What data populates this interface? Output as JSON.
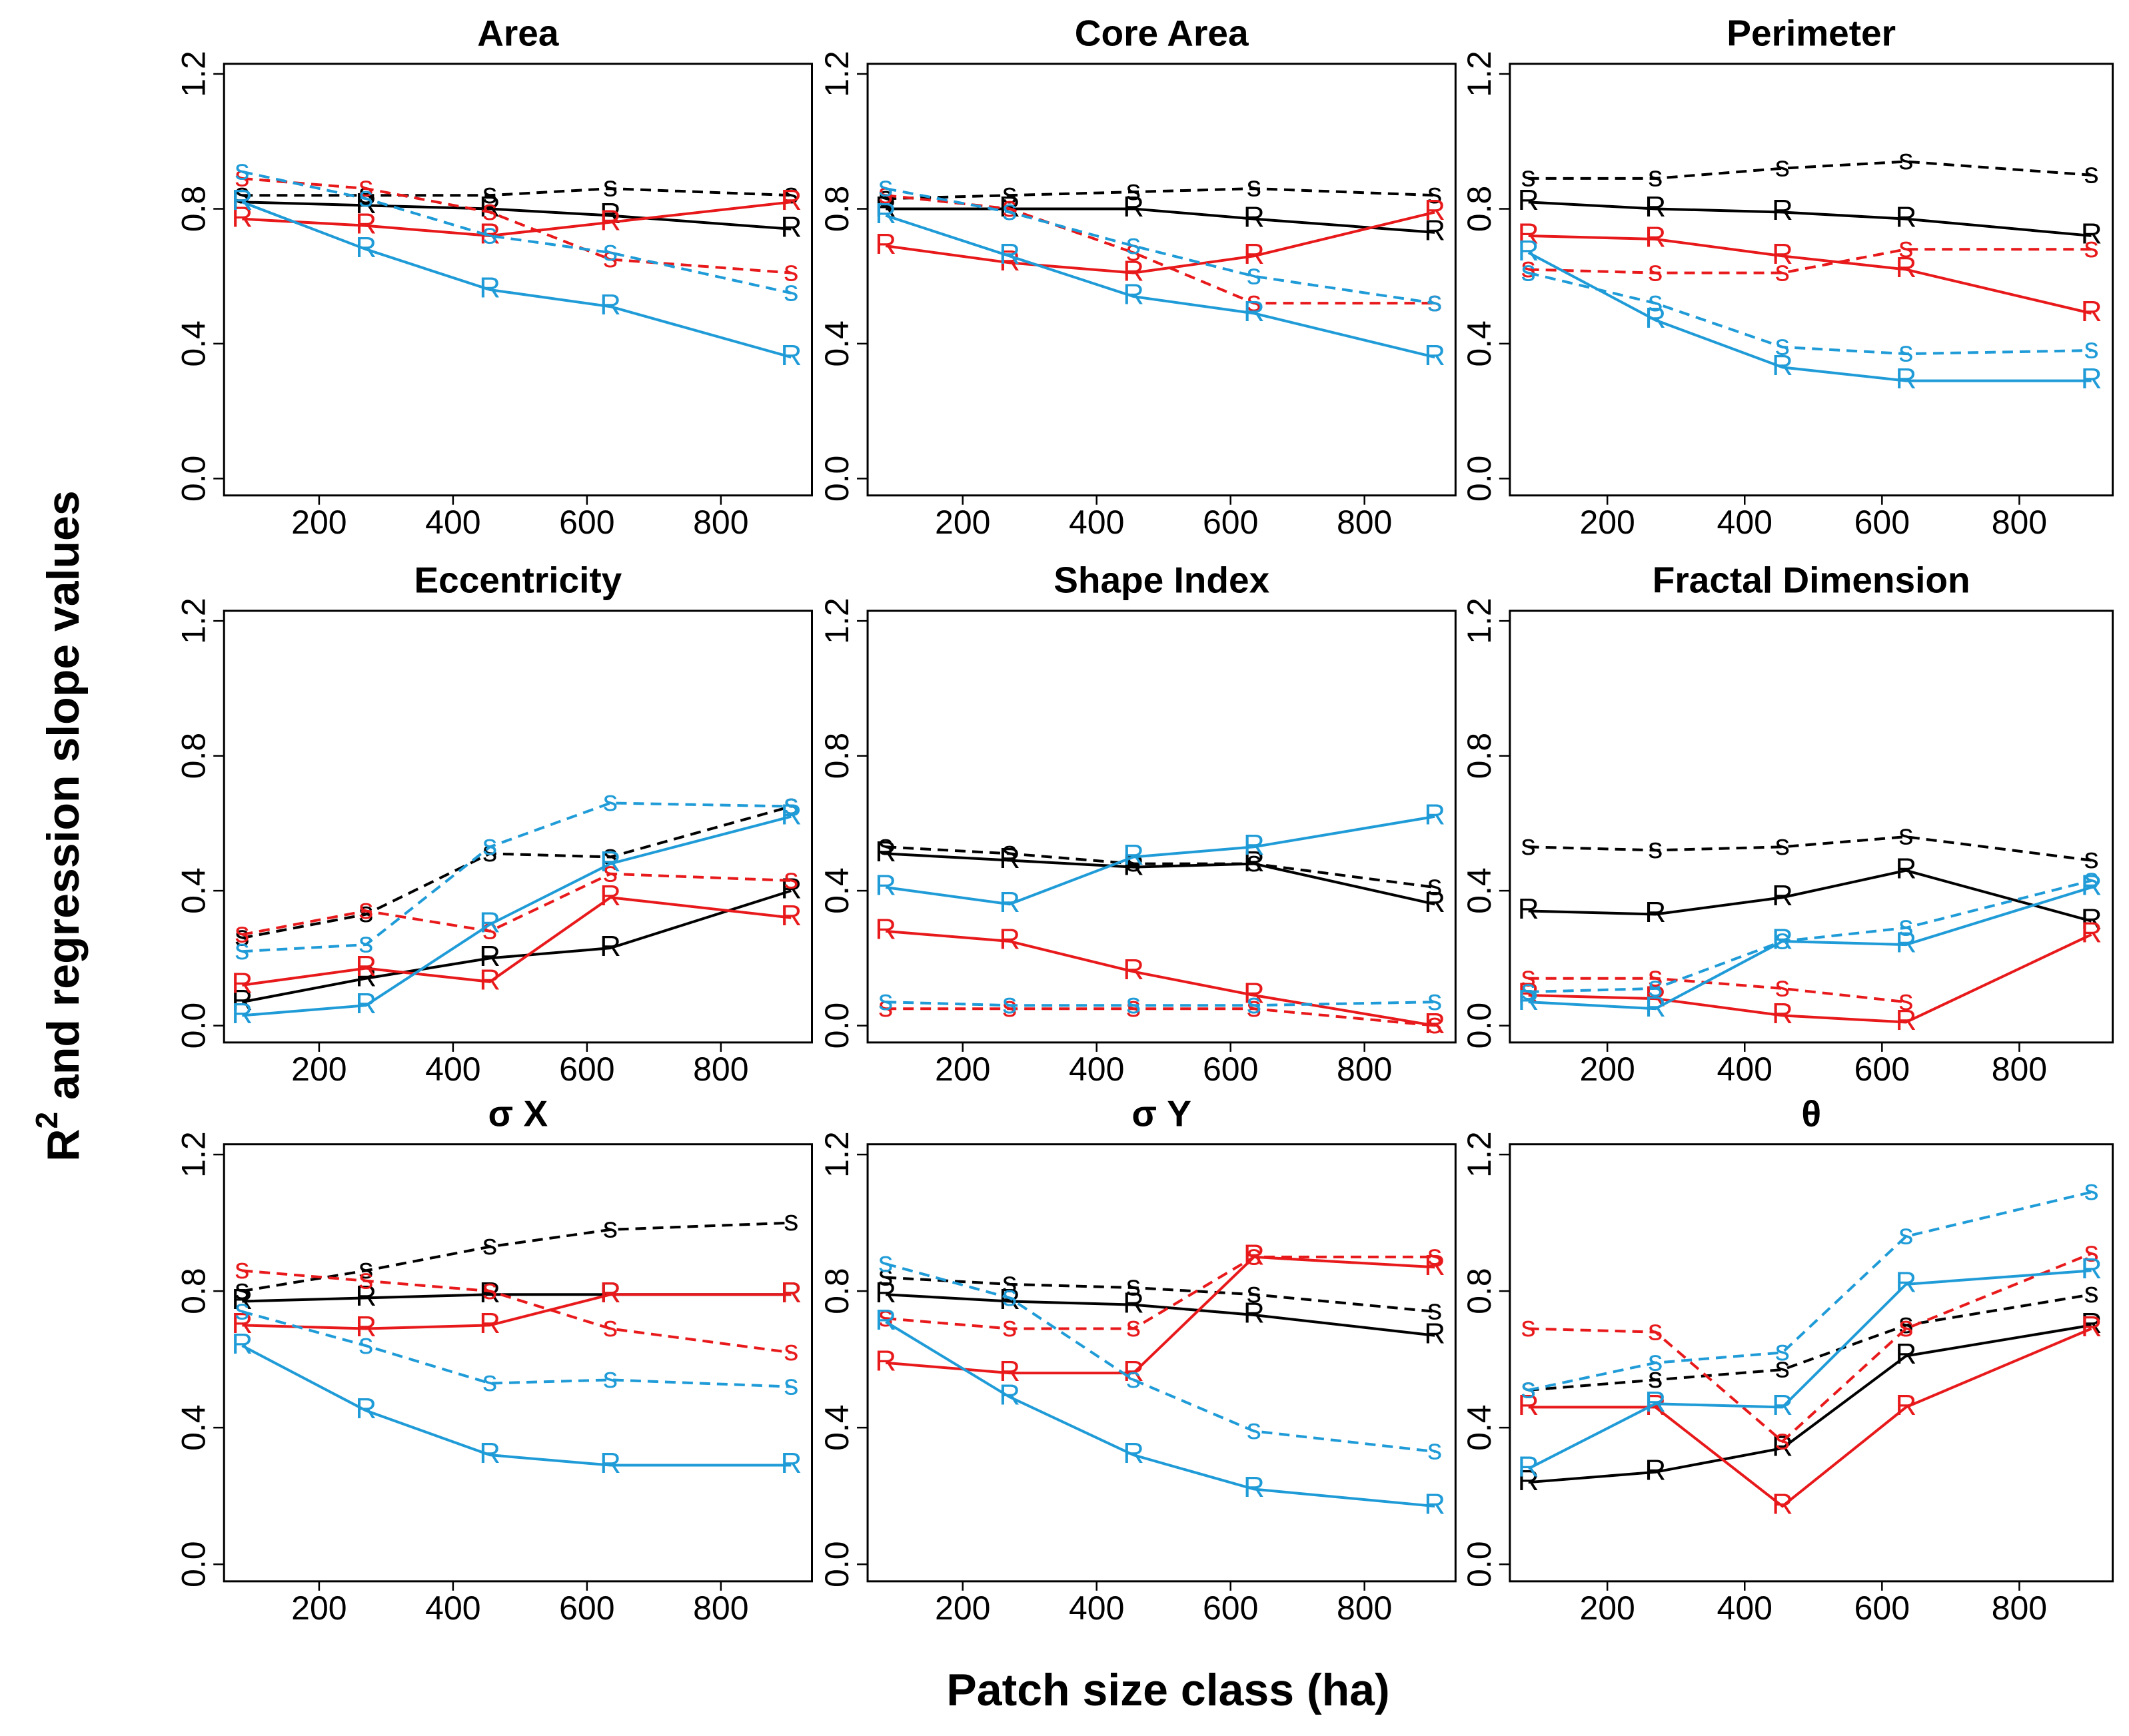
{
  "axis_labels": {
    "x_label": "Patch size class (ha)",
    "y_label": {
      "base": "R",
      "superscript": "2",
      "rest": "and regression slope values"
    }
  },
  "chart_data": [
    {
      "type": "line",
      "title": "Area",
      "x": [
        85,
        270,
        455,
        635,
        905
      ],
      "xlim": [
        58,
        936
      ],
      "xticks": [
        200,
        400,
        600,
        800
      ],
      "ylim": [
        -0.05,
        1.23
      ],
      "yticks": [
        {
          "value": 0,
          "label": "0.0"
        },
        0.4,
        0.8,
        1.2
      ],
      "series": [
        {
          "marker": "s",
          "color": "#000000",
          "linestyle": "dashed",
          "values": [
            0.84,
            0.84,
            0.84,
            0.86,
            0.84
          ]
        },
        {
          "marker": "R",
          "color": "#000000",
          "linestyle": "solid",
          "values": [
            0.82,
            0.81,
            0.8,
            0.78,
            0.74
          ]
        },
        {
          "marker": "s",
          "color": "#e8191b",
          "linestyle": "dashed",
          "values": [
            0.89,
            0.86,
            0.79,
            0.65,
            0.61
          ]
        },
        {
          "marker": "R",
          "color": "#e8191b",
          "linestyle": "solid",
          "values": [
            0.77,
            0.75,
            0.72,
            0.76,
            0.82
          ]
        },
        {
          "marker": "s",
          "color": "#1f9bd7",
          "linestyle": "dashed",
          "values": [
            0.91,
            0.83,
            0.72,
            0.67,
            0.55
          ]
        },
        {
          "marker": "R",
          "color": "#1f9bd7",
          "linestyle": "solid",
          "values": [
            0.82,
            0.68,
            0.56,
            0.51,
            0.36
          ]
        }
      ]
    },
    {
      "type": "line",
      "title": "Core Area",
      "x": [
        85,
        270,
        455,
        635,
        905
      ],
      "xlim": [
        58,
        936
      ],
      "xticks": [
        200,
        400,
        600,
        800
      ],
      "ylim": [
        -0.05,
        1.23
      ],
      "yticks": [
        {
          "value": 0,
          "label": "0.0"
        },
        0.4,
        0.8,
        1.2
      ],
      "series": [
        {
          "marker": "s",
          "color": "#000000",
          "linestyle": "dashed",
          "values": [
            0.83,
            0.84,
            0.85,
            0.86,
            0.84
          ]
        },
        {
          "marker": "R",
          "color": "#000000",
          "linestyle": "solid",
          "values": [
            0.8,
            0.8,
            0.8,
            0.77,
            0.73
          ]
        },
        {
          "marker": "s",
          "color": "#e8191b",
          "linestyle": "dashed",
          "values": [
            0.84,
            0.8,
            0.67,
            0.52,
            0.52
          ]
        },
        {
          "marker": "R",
          "color": "#e8191b",
          "linestyle": "solid",
          "values": [
            0.69,
            0.64,
            0.61,
            0.66,
            0.79
          ]
        },
        {
          "marker": "s",
          "color": "#1f9bd7",
          "linestyle": "dashed",
          "values": [
            0.86,
            0.79,
            0.69,
            0.6,
            0.52
          ]
        },
        {
          "marker": "R",
          "color": "#1f9bd7",
          "linestyle": "solid",
          "values": [
            0.78,
            0.66,
            0.54,
            0.49,
            0.36
          ]
        }
      ]
    },
    {
      "type": "line",
      "title": "Perimeter",
      "x": [
        85,
        270,
        455,
        635,
        905
      ],
      "xlim": [
        58,
        936
      ],
      "xticks": [
        200,
        400,
        600,
        800
      ],
      "ylim": [
        -0.05,
        1.23
      ],
      "yticks": [
        {
          "value": 0,
          "label": "0.0"
        },
        0.4,
        0.8,
        1.2
      ],
      "series": [
        {
          "marker": "s",
          "color": "#000000",
          "linestyle": "dashed",
          "values": [
            0.89,
            0.89,
            0.92,
            0.94,
            0.9
          ]
        },
        {
          "marker": "R",
          "color": "#000000",
          "linestyle": "solid",
          "values": [
            0.82,
            0.8,
            0.79,
            0.77,
            0.72
          ]
        },
        {
          "marker": "s",
          "color": "#e8191b",
          "linestyle": "dashed",
          "values": [
            0.62,
            0.61,
            0.61,
            0.68,
            0.68
          ]
        },
        {
          "marker": "R",
          "color": "#e8191b",
          "linestyle": "solid",
          "values": [
            0.72,
            0.71,
            0.66,
            0.62,
            0.49
          ]
        },
        {
          "marker": "s",
          "color": "#1f9bd7",
          "linestyle": "dashed",
          "values": [
            0.61,
            0.52,
            0.39,
            0.37,
            0.38
          ]
        },
        {
          "marker": "R",
          "color": "#1f9bd7",
          "linestyle": "solid",
          "values": [
            0.67,
            0.47,
            0.33,
            0.29,
            0.29
          ]
        }
      ]
    },
    {
      "type": "line",
      "title": "Eccentricity",
      "x": [
        85,
        270,
        455,
        635,
        905
      ],
      "xlim": [
        58,
        936
      ],
      "xticks": [
        200,
        400,
        600,
        800
      ],
      "ylim": [
        -0.05,
        1.23
      ],
      "yticks": [
        {
          "value": 0,
          "label": "0.0"
        },
        0.4,
        0.8,
        1.2
      ],
      "series": [
        {
          "marker": "s",
          "color": "#000000",
          "linestyle": "dashed",
          "values": [
            0.26,
            0.33,
            0.51,
            0.5,
            0.65
          ]
        },
        {
          "marker": "R",
          "color": "#000000",
          "linestyle": "solid",
          "values": [
            0.07,
            0.14,
            0.2,
            0.23,
            0.4
          ]
        },
        {
          "marker": "s",
          "color": "#e8191b",
          "linestyle": "dashed",
          "values": [
            0.27,
            0.34,
            0.28,
            0.45,
            0.43
          ]
        },
        {
          "marker": "R",
          "color": "#e8191b",
          "linestyle": "solid",
          "values": [
            0.12,
            0.17,
            0.13,
            0.38,
            0.32
          ]
        },
        {
          "marker": "s",
          "color": "#1f9bd7",
          "linestyle": "dashed",
          "values": [
            0.22,
            0.24,
            0.53,
            0.66,
            0.65
          ]
        },
        {
          "marker": "R",
          "color": "#1f9bd7",
          "linestyle": "solid",
          "values": [
            0.03,
            0.06,
            0.3,
            0.48,
            0.62
          ]
        }
      ]
    },
    {
      "type": "line",
      "title": "Shape Index",
      "x": [
        85,
        270,
        455,
        635,
        905
      ],
      "xlim": [
        58,
        936
      ],
      "xticks": [
        200,
        400,
        600,
        800
      ],
      "ylim": [
        -0.05,
        1.23
      ],
      "yticks": [
        {
          "value": 0,
          "label": "0.0"
        },
        0.4,
        0.8,
        1.2
      ],
      "series": [
        {
          "marker": "s",
          "color": "#000000",
          "linestyle": "dashed",
          "values": [
            0.53,
            0.51,
            0.48,
            0.48,
            0.41
          ]
        },
        {
          "marker": "R",
          "color": "#000000",
          "linestyle": "solid",
          "values": [
            0.51,
            0.49,
            0.47,
            0.48,
            0.36
          ]
        },
        {
          "marker": "s",
          "color": "#e8191b",
          "linestyle": "dashed",
          "values": [
            0.05,
            0.05,
            0.05,
            0.05,
            0.0
          ]
        },
        {
          "marker": "R",
          "color": "#e8191b",
          "linestyle": "solid",
          "values": [
            0.28,
            0.25,
            0.16,
            0.09,
            0.0
          ]
        },
        {
          "marker": "s",
          "color": "#1f9bd7",
          "linestyle": "dashed",
          "values": [
            0.07,
            0.06,
            0.06,
            0.06,
            0.07
          ]
        },
        {
          "marker": "R",
          "color": "#1f9bd7",
          "linestyle": "solid",
          "values": [
            0.41,
            0.36,
            0.5,
            0.53,
            0.62
          ]
        }
      ]
    },
    {
      "type": "line",
      "title": "Fractal Dimension",
      "x": [
        85,
        270,
        455,
        635,
        905
      ],
      "xlim": [
        58,
        936
      ],
      "xticks": [
        200,
        400,
        600,
        800
      ],
      "ylim": [
        -0.05,
        1.23
      ],
      "yticks": [
        {
          "value": 0,
          "label": "0.0"
        },
        0.4,
        0.8,
        1.2
      ],
      "series": [
        {
          "marker": "s",
          "color": "#000000",
          "linestyle": "dashed",
          "values": [
            0.53,
            0.52,
            0.53,
            0.56,
            0.49
          ]
        },
        {
          "marker": "R",
          "color": "#000000",
          "linestyle": "solid",
          "values": [
            0.34,
            0.33,
            0.38,
            0.46,
            0.31
          ]
        },
        {
          "marker": "s",
          "color": "#e8191b",
          "linestyle": "dashed",
          "values": [
            0.14,
            0.14,
            0.11,
            0.07,
            null
          ]
        },
        {
          "marker": "R",
          "color": "#e8191b",
          "linestyle": "solid",
          "values": [
            0.09,
            0.08,
            0.03,
            0.01,
            0.27
          ]
        },
        {
          "marker": "s",
          "color": "#1f9bd7",
          "linestyle": "dashed",
          "values": [
            0.1,
            0.11,
            0.25,
            0.29,
            0.43
          ]
        },
        {
          "marker": "R",
          "color": "#1f9bd7",
          "linestyle": "solid",
          "values": [
            0.07,
            0.05,
            0.25,
            0.24,
            0.41
          ]
        }
      ]
    },
    {
      "type": "line",
      "title": "σ X",
      "x": [
        85,
        270,
        455,
        635,
        905
      ],
      "xlim": [
        58,
        936
      ],
      "xticks": [
        200,
        400,
        600,
        800
      ],
      "ylim": [
        -0.05,
        1.23
      ],
      "yticks": [
        {
          "value": 0,
          "label": "0.0"
        },
        0.4,
        0.8,
        1.2
      ],
      "series": [
        {
          "marker": "s",
          "color": "#000000",
          "linestyle": "dashed",
          "values": [
            0.8,
            0.86,
            0.93,
            0.98,
            1.0
          ]
        },
        {
          "marker": "R",
          "color": "#000000",
          "linestyle": "solid",
          "values": [
            0.77,
            0.78,
            0.79,
            0.79,
            0.79
          ]
        },
        {
          "marker": "s",
          "color": "#e8191b",
          "linestyle": "dashed",
          "values": [
            0.86,
            0.83,
            0.8,
            0.69,
            0.62
          ]
        },
        {
          "marker": "R",
          "color": "#e8191b",
          "linestyle": "solid",
          "values": [
            0.7,
            0.69,
            0.7,
            0.79,
            0.79
          ]
        },
        {
          "marker": "s",
          "color": "#1f9bd7",
          "linestyle": "dashed",
          "values": [
            0.74,
            0.64,
            0.53,
            0.54,
            0.52
          ]
        },
        {
          "marker": "R",
          "color": "#1f9bd7",
          "linestyle": "solid",
          "values": [
            0.64,
            0.45,
            0.32,
            0.29,
            0.29
          ]
        }
      ]
    },
    {
      "type": "line",
      "title": "σ Y",
      "x": [
        85,
        270,
        455,
        635,
        905
      ],
      "xlim": [
        58,
        936
      ],
      "xticks": [
        200,
        400,
        600,
        800
      ],
      "ylim": [
        -0.05,
        1.23
      ],
      "yticks": [
        {
          "value": 0,
          "label": "0.0"
        },
        0.4,
        0.8,
        1.2
      ],
      "series": [
        {
          "marker": "s",
          "color": "#000000",
          "linestyle": "dashed",
          "values": [
            0.84,
            0.82,
            0.81,
            0.79,
            0.74
          ]
        },
        {
          "marker": "R",
          "color": "#000000",
          "linestyle": "solid",
          "values": [
            0.79,
            0.77,
            0.76,
            0.73,
            0.67
          ]
        },
        {
          "marker": "s",
          "color": "#e8191b",
          "linestyle": "dashed",
          "values": [
            0.72,
            0.69,
            0.69,
            0.9,
            0.9
          ]
        },
        {
          "marker": "R",
          "color": "#e8191b",
          "linestyle": "solid",
          "values": [
            0.59,
            0.56,
            0.56,
            0.9,
            0.87
          ]
        },
        {
          "marker": "s",
          "color": "#1f9bd7",
          "linestyle": "dashed",
          "values": [
            0.88,
            0.78,
            0.54,
            0.39,
            0.33
          ]
        },
        {
          "marker": "R",
          "color": "#1f9bd7",
          "linestyle": "solid",
          "values": [
            0.71,
            0.49,
            0.32,
            0.22,
            0.17
          ]
        }
      ]
    },
    {
      "type": "line",
      "title": "θ",
      "x": [
        85,
        270,
        455,
        635,
        905
      ],
      "xlim": [
        58,
        936
      ],
      "xticks": [
        200,
        400,
        600,
        800
      ],
      "ylim": [
        -0.05,
        1.23
      ],
      "yticks": [
        {
          "value": 0,
          "label": "0.0"
        },
        0.4,
        0.8,
        1.2
      ],
      "series": [
        {
          "marker": "s",
          "color": "#000000",
          "linestyle": "dashed",
          "values": [
            0.51,
            0.54,
            0.57,
            0.7,
            0.79
          ]
        },
        {
          "marker": "R",
          "color": "#000000",
          "linestyle": "solid",
          "values": [
            0.24,
            0.27,
            0.34,
            0.61,
            0.7
          ]
        },
        {
          "marker": "s",
          "color": "#e8191b",
          "linestyle": "dashed",
          "values": [
            0.69,
            0.68,
            0.36,
            0.69,
            0.91
          ]
        },
        {
          "marker": "R",
          "color": "#e8191b",
          "linestyle": "solid",
          "values": [
            0.46,
            0.46,
            0.17,
            0.46,
            0.69
          ]
        },
        {
          "marker": "s",
          "color": "#1f9bd7",
          "linestyle": "dashed",
          "values": [
            0.51,
            0.59,
            0.62,
            0.96,
            1.09
          ]
        },
        {
          "marker": "R",
          "color": "#1f9bd7",
          "linestyle": "solid",
          "values": [
            0.28,
            0.47,
            0.46,
            0.82,
            0.86
          ]
        }
      ]
    }
  ]
}
